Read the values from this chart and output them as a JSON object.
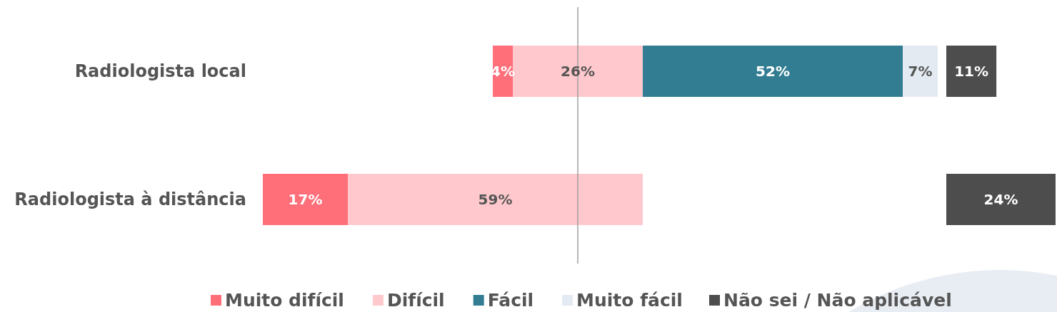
{
  "chart_data": [
    {
      "type": "bar",
      "orientation": "horizontal",
      "stacked": true,
      "categories": [
        "Radiologista local"
      ],
      "series": [
        {
          "name": "Muito difícil",
          "color": "#ff6f7a",
          "values": [
            4
          ],
          "value_labels": [
            "4%"
          ]
        },
        {
          "name": "Difícil",
          "color": "#ffc8cc",
          "values": [
            26
          ],
          "value_labels": [
            "26%"
          ]
        },
        {
          "name": "Fácil",
          "color": "#337d92",
          "values": [
            52
          ],
          "value_labels": [
            "52%"
          ]
        },
        {
          "name": "Muito fácil",
          "color": "#e3eaf1",
          "values": [
            7
          ],
          "value_labels": [
            "7%"
          ]
        }
      ],
      "ref_lines": [
        {
          "axis": "x",
          "value": 17,
          "color": "#a0a0a0"
        }
      ],
      "legend": "bottom",
      "tick_labels": "y"
    },
    {
      "type": "bar",
      "orientation": "horizontal",
      "stacked": true,
      "categories": [
        "Radiologista à distância"
      ],
      "series": [
        {
          "color": "#ff6f7a",
          "values": [
            17
          ],
          "value_labels": [
            "17%"
          ]
        },
        {
          "color": "#ffc8cc",
          "values": [
            59
          ],
          "value_labels": [
            "59%"
          ]
        }
      ],
      "ref_lines": [
        {
          "axis": "x",
          "value": 63,
          "color": "#a0a0a0"
        }
      ],
      "tick_labels": "y"
    },
    {
      "type": "bar",
      "orientation": "horizontal",
      "categories": [
        null,
        null
      ],
      "series": [
        {
          "name": "Não sei / Não aplicável",
          "color": "#4d4d4d",
          "values": [
            11,
            24
          ],
          "value_labels": [
            "11%",
            "24%"
          ]
        }
      ],
      "legend": "bottom",
      "tick_labels": false
    }
  ]
}
